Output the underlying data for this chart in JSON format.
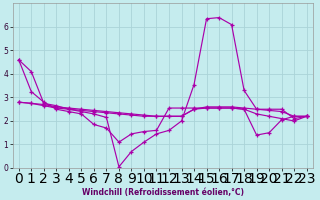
{
  "xlabel": "Windchill (Refroidissement éolien,°C)",
  "background_color": "#c5ecee",
  "grid_color": "#aad4d8",
  "line_color": "#aa00aa",
  "xlim": [
    -0.5,
    23.5
  ],
  "ylim": [
    0,
    7
  ],
  "xticks": [
    0,
    1,
    2,
    3,
    4,
    5,
    6,
    7,
    8,
    9,
    10,
    11,
    12,
    13,
    14,
    15,
    16,
    17,
    18,
    19,
    20,
    21,
    22,
    23
  ],
  "yticks": [
    0,
    1,
    2,
    3,
    4,
    5,
    6
  ],
  "series1": [
    4.6,
    4.1,
    2.75,
    2.65,
    2.5,
    2.4,
    2.3,
    2.15,
    0.05,
    0.7,
    1.1,
    1.45,
    1.6,
    2.0,
    3.55,
    6.35,
    6.4,
    6.1,
    3.3,
    2.5,
    2.5,
    2.5,
    2.1,
    2.2
  ],
  "series2": [
    2.8,
    2.75,
    2.7,
    2.6,
    2.55,
    2.5,
    2.45,
    2.4,
    2.35,
    2.3,
    2.25,
    2.2,
    2.2,
    2.2,
    2.5,
    2.6,
    2.6,
    2.6,
    2.55,
    2.5,
    2.45,
    2.4,
    2.2,
    2.2
  ],
  "series3": [
    4.6,
    3.25,
    2.8,
    2.5,
    2.4,
    2.3,
    1.85,
    1.7,
    1.1,
    1.45,
    1.55,
    1.6,
    2.55,
    2.55,
    2.55,
    2.55,
    2.55,
    2.55,
    2.5,
    1.4,
    1.5,
    2.05,
    2.2,
    2.2
  ],
  "series4": [
    2.8,
    2.75,
    2.65,
    2.55,
    2.5,
    2.45,
    2.4,
    2.35,
    2.3,
    2.25,
    2.2,
    2.2,
    2.2,
    2.2,
    2.5,
    2.55,
    2.55,
    2.55,
    2.5,
    2.3,
    2.2,
    2.1,
    2.0,
    2.2
  ]
}
